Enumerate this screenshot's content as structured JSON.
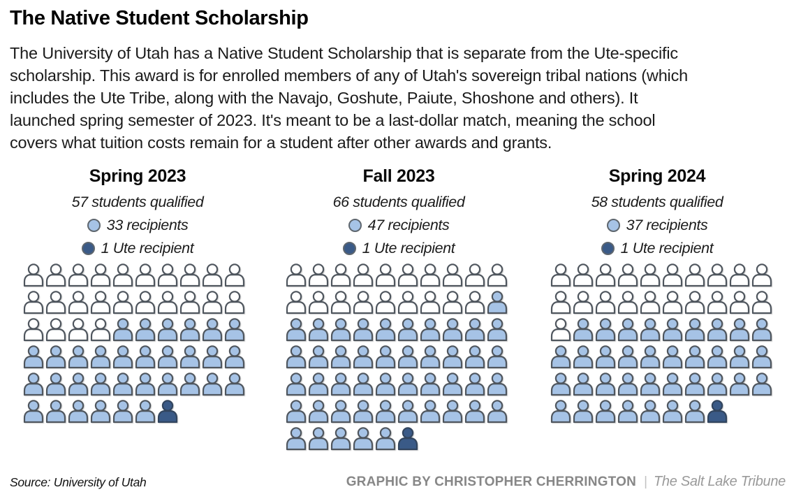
{
  "title": "The Native Student Scholarship",
  "intro_lines": [
    "The University of Utah has a Native Student Scholarship that is separate from the Ute-specific",
    "scholarship. This award is for enrolled members of any of Utah's sovereign tribal nations (which",
    "includes the Ute Tribe, along with the Navajo, Goshute, Paiute, Shoshone and others). It",
    "launched spring semester of 2023. It's meant to be a last-dollar match, meaning the school",
    "covers what tuition costs remain for a student after other awards and grants."
  ],
  "chart_data": {
    "type": "pictogram",
    "icons_per_row": 10,
    "icon_fill_order": "non-recipients first (white), then recipients (light blue), Ute recipient last (dark blue)",
    "colors": {
      "recipient": "#a6c3e6",
      "ute": "#3a5a87",
      "qualified": "#ffffff",
      "icon_stroke": "#4f565e"
    },
    "groups": [
      {
        "label": "Spring 2023",
        "qualified": 57,
        "recipients": 33,
        "ute_recipients": 1,
        "non_recipients": 24,
        "qualified_text": "57 students qualified",
        "recipients_text": "33 recipients",
        "ute_text": "1 Ute recipient"
      },
      {
        "label": "Fall 2023",
        "qualified": 66,
        "recipients": 47,
        "ute_recipients": 1,
        "non_recipients": 19,
        "qualified_text": "66 students qualified",
        "recipients_text": "47 recipients",
        "ute_text": "1 Ute recipient"
      },
      {
        "label": "Spring 2024",
        "qualified": 58,
        "recipients": 37,
        "ute_recipients": 1,
        "non_recipients": 21,
        "qualified_text": "58 students qualified",
        "recipients_text": "37 recipients",
        "ute_text": "1 Ute recipient"
      }
    ]
  },
  "footer": {
    "source": "Source: University of Utah",
    "credit": "GRAPHIC BY CHRISTOPHER CHERRINGTON",
    "separator": "|",
    "publication": "The Salt Lake Tribune"
  }
}
